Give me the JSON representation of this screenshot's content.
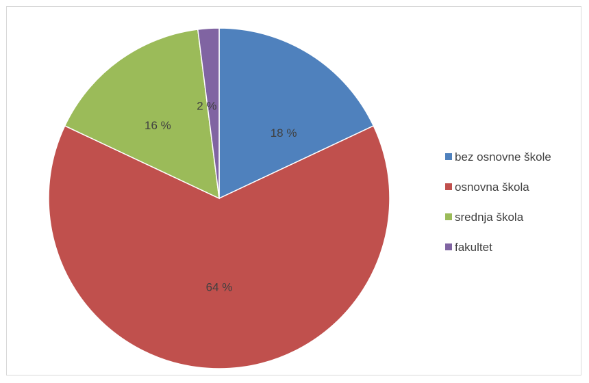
{
  "chart_data": {
    "type": "pie",
    "title": "",
    "legend_position": "right",
    "start_angle_deg": 0,
    "direction": "clockwise",
    "slices": [
      {
        "name": "bez osnovne škole",
        "value": 18,
        "label": "18 %",
        "color": "#4f81bd"
      },
      {
        "name": "osnovna škola",
        "value": 64,
        "label": "64 %",
        "color": "#c0504d"
      },
      {
        "name": "srednja škola",
        "value": 16,
        "label": "16 %",
        "color": "#9bbb59"
      },
      {
        "name": "fakultet",
        "value": 2,
        "label": "2 %",
        "color": "#8064a2"
      }
    ]
  }
}
